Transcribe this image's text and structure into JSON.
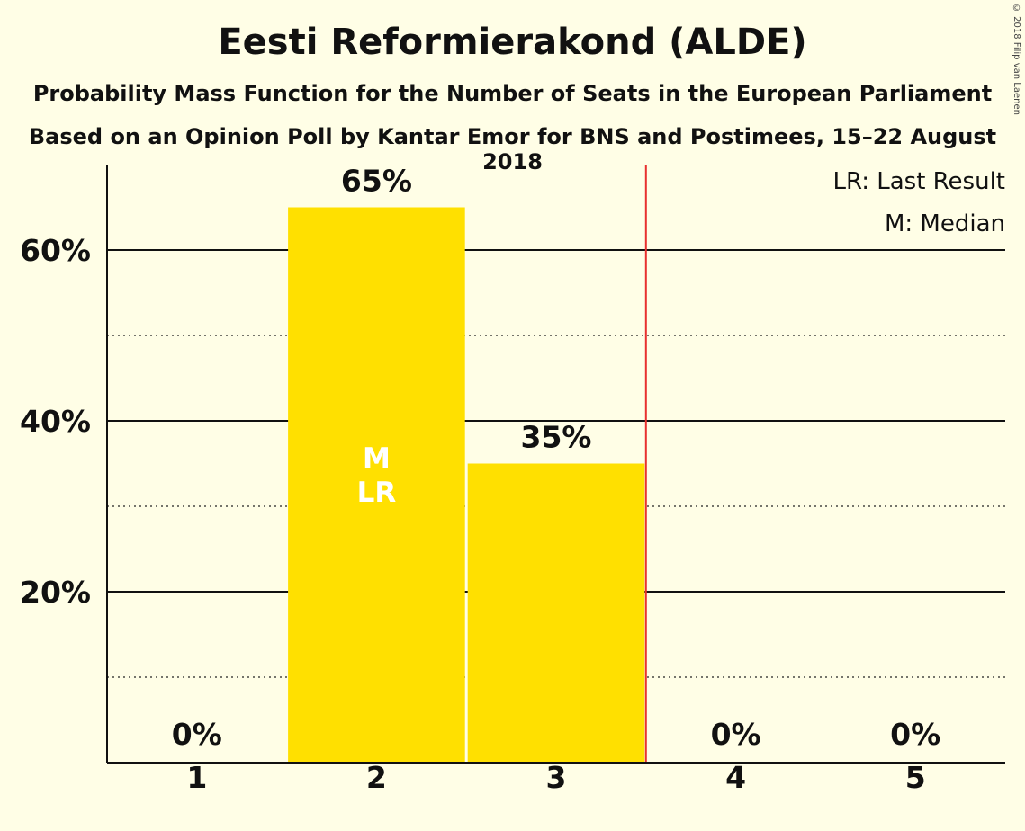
{
  "header": {
    "title": "Eesti Reformierakond (ALDE)",
    "subtitle1": "Probability Mass Function for the Number of Seats in the European Parliament",
    "subtitle2": "Based on an Opinion Poll by Kantar Emor for BNS and Postimees, 15–22 August 2018",
    "copyright": "© 2018 Filip van Laenen"
  },
  "legend": {
    "last_result": "LR: Last Result",
    "median": "M: Median"
  },
  "colors": {
    "bar": "#FFE000",
    "background": "#FFFEE6",
    "majority_line": "#E8312F"
  },
  "chart_data": {
    "type": "bar",
    "categories": [
      "1",
      "2",
      "3",
      "4",
      "5"
    ],
    "values": [
      0,
      65,
      35,
      0,
      0
    ],
    "value_labels": [
      "0%",
      "65%",
      "35%",
      "0%",
      "0%"
    ],
    "bar_markers": [
      "",
      "M\nLR",
      "",
      "",
      ""
    ],
    "y_ticks": [
      20,
      40,
      60
    ],
    "y_tick_labels": [
      "20%",
      "40%",
      "60%"
    ],
    "y_minor_ticks": [
      10,
      30,
      50
    ],
    "ylim": [
      0,
      70
    ],
    "majority_after_category": "3",
    "legend_position": "top-right"
  }
}
